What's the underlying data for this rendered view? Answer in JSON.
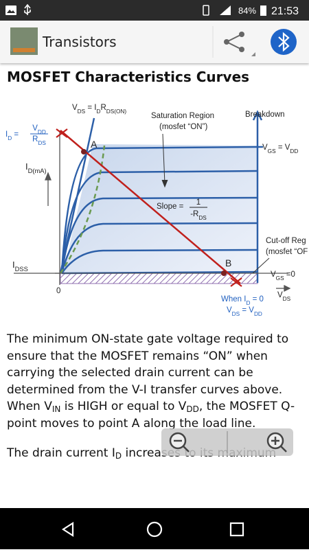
{
  "status": {
    "battery": "84%",
    "time": "21:53"
  },
  "app_bar": {
    "title": "Transistors"
  },
  "heading": "MOSFET Characteristics Curves",
  "diagram": {
    "vds_eq": [
      "V",
      "DS",
      " = I",
      "D",
      "R",
      "DS(ON)"
    ],
    "saturation": "Saturation Region",
    "saturation_note": "(mosfet “ON”)",
    "breakdown": "Breakdown",
    "id_eq": [
      "I",
      "D",
      " ="
    ],
    "id_num": [
      "V",
      "DD"
    ],
    "id_den": [
      "R",
      "DS"
    ],
    "y_axis": [
      "I",
      "D(mA)"
    ],
    "point_a": "A",
    "vgs_max": [
      "V",
      "GS",
      " = V",
      "DD"
    ],
    "slope": "Slope =",
    "slope_num": "1",
    "slope_den": [
      "-R",
      "DS"
    ],
    "cutoff": "Cut-off Reg",
    "cutoff_note": "(mosfet “OF",
    "idss": [
      "I",
      "DSS"
    ],
    "point_b": "B",
    "vgs_zero": [
      "V",
      "GS",
      " =0"
    ],
    "origin": "0",
    "x_axis": [
      "V",
      "DS"
    ],
    "when": [
      "When I",
      "D",
      " = 0"
    ],
    "when2": [
      "V",
      "DS",
      " = V",
      "DD"
    ]
  },
  "paragraphs": [
    [
      "The minimum ON-state gate voltage required to ensure that the MOSFET remains “ON” when carrying the selected drain current can be determined from the V-I transfer curves above. When V",
      "IN",
      " is HIGH or equal to V",
      "DD",
      ", the MOSFET Q-point moves to point A along the load line."
    ],
    [
      "The drain current I",
      "D",
      " increases to its maximum"
    ]
  ]
}
